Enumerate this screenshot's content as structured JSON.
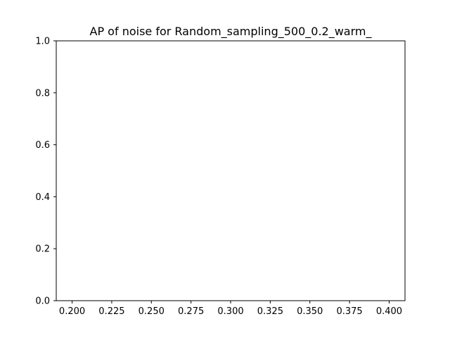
{
  "chart_data": {
    "type": "line",
    "title": "AP of noise for Random_sampling_500_0.2_warm_",
    "xlabel": "",
    "ylabel": "",
    "xlim": [
      0.19,
      0.41
    ],
    "ylim": [
      0.0,
      1.0
    ],
    "xticks": [
      "0.200",
      "0.225",
      "0.250",
      "0.275",
      "0.300",
      "0.325",
      "0.350",
      "0.375",
      "0.400"
    ],
    "yticks": [
      "0.0",
      "0.2",
      "0.4",
      "0.6",
      "0.8",
      "1.0"
    ],
    "grid": false,
    "series": [
      {
        "values": []
      }
    ]
  }
}
